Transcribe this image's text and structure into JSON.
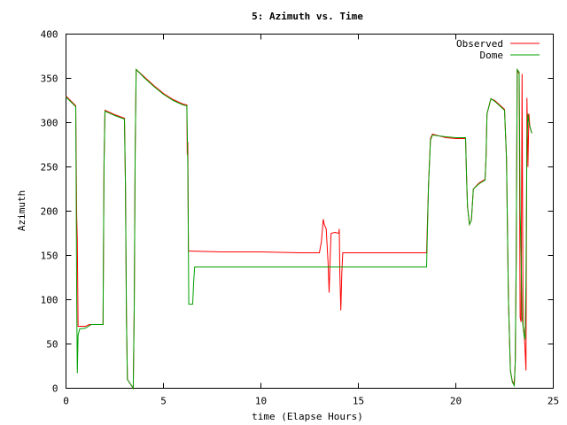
{
  "chart_data": {
    "type": "line",
    "title": "5: Azimuth vs. Time",
    "xlabel": "time (Elapse Hours)",
    "ylabel": "Azimuth",
    "xlim": [
      0,
      25
    ],
    "ylim": [
      0,
      400
    ],
    "xticks": [
      0,
      5,
      10,
      15,
      20,
      25
    ],
    "yticks": [
      0,
      50,
      100,
      150,
      200,
      250,
      300,
      350,
      400
    ],
    "grid": false,
    "legend_position": "top-right",
    "series": [
      {
        "name": "Observed",
        "color": "#ff0000",
        "points": [
          [
            0,
            330
          ],
          [
            0.5,
            319
          ],
          [
            0.55,
            194
          ],
          [
            0.58,
            168
          ],
          [
            0.62,
            70
          ],
          [
            1.0,
            70
          ],
          [
            1.2,
            72
          ],
          [
            1.9,
            72
          ],
          [
            1.95,
            255
          ],
          [
            2.0,
            314
          ],
          [
            2.5,
            309
          ],
          [
            3.0,
            305
          ],
          [
            3.05,
            230
          ],
          [
            3.1,
            85
          ],
          [
            3.15,
            10
          ],
          [
            3.45,
            0
          ],
          [
            3.5,
            90
          ],
          [
            3.55,
            270
          ],
          [
            3.6,
            360
          ],
          [
            4.0,
            352
          ],
          [
            4.5,
            342
          ],
          [
            5.0,
            333
          ],
          [
            5.5,
            326
          ],
          [
            6.0,
            321
          ],
          [
            6.2,
            320
          ],
          [
            6.22,
            264
          ],
          [
            6.25,
            278
          ],
          [
            6.28,
            155
          ],
          [
            8.0,
            154
          ],
          [
            10.0,
            154
          ],
          [
            12.0,
            153
          ],
          [
            13.0,
            153
          ],
          [
            13.1,
            165
          ],
          [
            13.2,
            191
          ],
          [
            13.25,
            185
          ],
          [
            13.35,
            180
          ],
          [
            13.45,
            140
          ],
          [
            13.5,
            108
          ],
          [
            13.55,
            145
          ],
          [
            13.6,
            175
          ],
          [
            13.8,
            176
          ],
          [
            14.0,
            175
          ],
          [
            14.02,
            180
          ],
          [
            14.05,
            130
          ],
          [
            14.1,
            88
          ],
          [
            14.15,
            130
          ],
          [
            14.2,
            153
          ],
          [
            16.0,
            153
          ],
          [
            18.0,
            153
          ],
          [
            18.5,
            153
          ],
          [
            18.6,
            230
          ],
          [
            18.7,
            282
          ],
          [
            18.8,
            287
          ],
          [
            19.5,
            283
          ],
          [
            20.0,
            282
          ],
          [
            20.5,
            282
          ],
          [
            20.55,
            240
          ],
          [
            20.6,
            205
          ],
          [
            20.7,
            185
          ],
          [
            20.8,
            190
          ],
          [
            20.9,
            225
          ],
          [
            21.2,
            232
          ],
          [
            21.5,
            236
          ],
          [
            21.55,
            260
          ],
          [
            21.6,
            310
          ],
          [
            21.8,
            327
          ],
          [
            22.0,
            325
          ],
          [
            22.5,
            315
          ],
          [
            22.6,
            260
          ],
          [
            22.7,
            100
          ],
          [
            22.8,
            20
          ],
          [
            22.9,
            8
          ],
          [
            23.0,
            5
          ],
          [
            23.05,
            30
          ],
          [
            23.1,
            150
          ],
          [
            23.15,
            360
          ],
          [
            23.25,
            355
          ],
          [
            23.3,
            80
          ],
          [
            23.35,
            75
          ],
          [
            23.4,
            355
          ],
          [
            23.45,
            70
          ],
          [
            23.5,
            65
          ],
          [
            23.55,
            45
          ],
          [
            23.6,
            20
          ],
          [
            23.65,
            328
          ],
          [
            23.7,
            250
          ],
          [
            23.75,
            310
          ],
          [
            23.8,
            295
          ],
          [
            23.9,
            288
          ]
        ]
      },
      {
        "name": "Dome",
        "color": "#00a000",
        "points": [
          [
            0,
            329
          ],
          [
            0.5,
            318
          ],
          [
            0.55,
            100
          ],
          [
            0.58,
            17
          ],
          [
            0.62,
            60
          ],
          [
            0.7,
            67
          ],
          [
            1.0,
            68
          ],
          [
            1.3,
            72
          ],
          [
            1.9,
            72
          ],
          [
            1.95,
            250
          ],
          [
            2.0,
            313
          ],
          [
            2.5,
            308
          ],
          [
            3.0,
            304
          ],
          [
            3.05,
            230
          ],
          [
            3.1,
            80
          ],
          [
            3.15,
            10
          ],
          [
            3.45,
            0
          ],
          [
            3.5,
            90
          ],
          [
            3.55,
            270
          ],
          [
            3.6,
            360
          ],
          [
            4.0,
            351
          ],
          [
            4.5,
            341
          ],
          [
            5.0,
            332
          ],
          [
            5.5,
            325
          ],
          [
            6.0,
            320
          ],
          [
            6.2,
            319
          ],
          [
            6.25,
            250
          ],
          [
            6.3,
            95
          ],
          [
            6.5,
            95
          ],
          [
            6.55,
            120
          ],
          [
            6.6,
            137
          ],
          [
            8.0,
            137
          ],
          [
            10.0,
            137
          ],
          [
            12.0,
            137
          ],
          [
            14.0,
            137
          ],
          [
            16.0,
            137
          ],
          [
            18.0,
            137
          ],
          [
            18.5,
            137
          ],
          [
            18.6,
            230
          ],
          [
            18.7,
            280
          ],
          [
            18.8,
            286
          ],
          [
            19.5,
            284
          ],
          [
            20.0,
            283
          ],
          [
            20.5,
            283
          ],
          [
            20.55,
            240
          ],
          [
            20.6,
            205
          ],
          [
            20.7,
            185
          ],
          [
            20.8,
            190
          ],
          [
            20.9,
            225
          ],
          [
            21.2,
            231
          ],
          [
            21.5,
            235
          ],
          [
            21.55,
            260
          ],
          [
            21.6,
            310
          ],
          [
            21.8,
            327
          ],
          [
            22.0,
            324
          ],
          [
            22.5,
            314
          ],
          [
            22.6,
            260
          ],
          [
            22.7,
            100
          ],
          [
            22.8,
            20
          ],
          [
            22.9,
            7
          ],
          [
            23.0,
            3
          ],
          [
            23.05,
            30
          ],
          [
            23.1,
            150
          ],
          [
            23.15,
            360
          ],
          [
            23.25,
            357
          ],
          [
            23.3,
            200
          ],
          [
            23.35,
            150
          ],
          [
            23.4,
            80
          ],
          [
            23.45,
            70
          ],
          [
            23.5,
            60
          ],
          [
            23.55,
            55
          ],
          [
            23.6,
            120
          ],
          [
            23.65,
            280
          ],
          [
            23.7,
            310
          ],
          [
            23.75,
            300
          ],
          [
            23.9,
            288
          ]
        ]
      }
    ]
  }
}
